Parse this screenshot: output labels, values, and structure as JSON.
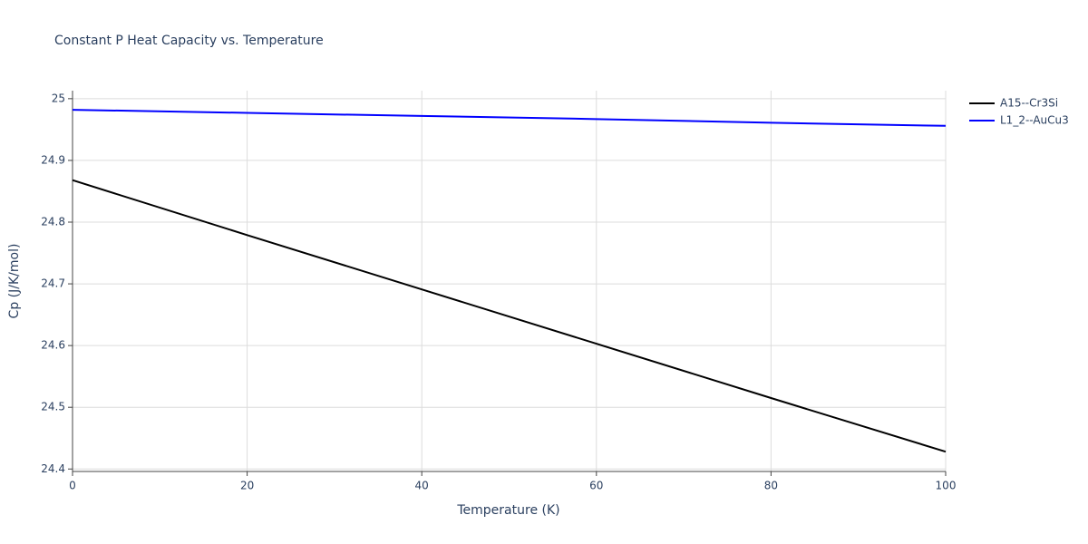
{
  "chart_data": {
    "type": "line",
    "title": "Constant P Heat Capacity vs. Temperature",
    "x_label": "Temperature (K)",
    "y_label": "Cp (J/K/mol)",
    "x": [
      0,
      20,
      40,
      60,
      80,
      100
    ],
    "series": [
      {
        "name": "A15--Cr3Si",
        "color": "#000000",
        "values": [
          24.868,
          24.779,
          24.691,
          24.603,
          24.515,
          24.428
        ]
      },
      {
        "name": "L1_2--AuCu3",
        "color": "#0000ff",
        "values": [
          24.982,
          24.977,
          24.972,
          24.967,
          24.961,
          24.956
        ]
      }
    ],
    "xlim": [
      0,
      100
    ],
    "ylim": [
      24.396,
      25.013
    ],
    "xticks": [
      0,
      20,
      40,
      60,
      80,
      100
    ],
    "yticks": [
      24.4,
      24.5,
      24.6,
      24.7,
      24.8,
      24.9,
      25
    ],
    "grid": true,
    "legend": "right"
  }
}
